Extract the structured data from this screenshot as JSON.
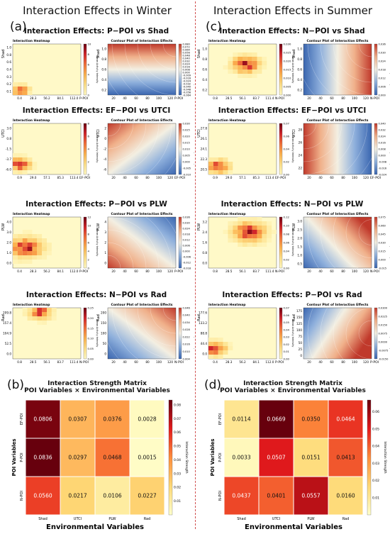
{
  "headers": {
    "winter": "Interaction Effects in Winter",
    "summer": "Interaction Effects in Summer"
  },
  "letters": {
    "a": "(a)",
    "b": "(b)",
    "c": "(c)",
    "d": "(d)"
  },
  "sub": {
    "heat": "Interaction Heatmap",
    "contour": "Contour Plot of Interaction Effects",
    "heat_cb": "Mean Activity Intensity",
    "contour_cb": "Predicted Activity Intensity"
  },
  "colors": {
    "heat_low": "#fff7bc",
    "heat_high": "#67000d",
    "contour_low": "#3b6fb6",
    "contour_mid": "#f7f4e6",
    "contour_high": "#c0392b"
  },
  "chart_data": [
    {
      "type": "heatmap",
      "panel": "a",
      "title": "Interaction Effects: P−POI vs Shad",
      "xlabel": "P-POI",
      "ylabel": "Shad",
      "xticks": [
        "0.4",
        "28.3",
        "56.2",
        "84.1",
        "112.0"
      ],
      "yticks": [
        "0.1",
        "0.2",
        "0.3",
        "0.4",
        "0.6",
        "0.8",
        "1.0"
      ],
      "cbar_ticks": [
        "0",
        "2",
        "4",
        "6",
        "8",
        "10"
      ],
      "contour": {
        "xticks": [
          "20",
          "40",
          "60",
          "80",
          "100",
          "120"
        ],
        "yticks": [
          "0.2",
          "0.4",
          "0.6",
          "0.8",
          "1.0"
        ],
        "cbar_ticks": [
          "-0.064",
          "-0.056",
          "-0.048",
          "-0.040",
          "-0.032",
          "-0.024",
          "-0.016",
          "-0.009",
          "0.000",
          "0.008",
          "0.016",
          "0.024",
          "0.032",
          "0.040",
          "0.048",
          "0.056",
          "0.064",
          "0.072",
          "0.080"
        ]
      }
    },
    {
      "type": "heatmap",
      "panel": "a",
      "title": "Interaction Effects: EF−POI vs UTCI",
      "xlabel": "EF-POI",
      "ylabel": "UTCI",
      "xticks": [
        "0.9",
        "29.0",
        "57.1",
        "85.3",
        "113.4"
      ],
      "yticks": [
        "-6.0",
        "-3.7",
        "-1.5",
        "0.8",
        "3.0"
      ],
      "cbar_ticks": [
        "0",
        "2",
        "4",
        "6",
        "8"
      ],
      "contour": {
        "xticks": [
          "20",
          "40",
          "60",
          "80",
          "100",
          "120"
        ],
        "yticks": [
          "-6",
          "-4",
          "-2",
          "0",
          "2"
        ],
        "cbar_ticks": [
          "-0.010",
          "-0.005",
          "0.000",
          "0.005",
          "0.010",
          "0.015",
          "0.020",
          "0.025",
          "0.030"
        ]
      }
    },
    {
      "type": "heatmap",
      "panel": "a",
      "title": "Interaction Effects: P−POI vs PLW",
      "xlabel": "P-POI",
      "ylabel": "PLW",
      "xticks": [
        "0.4",
        "28.3",
        "56.2",
        "84.1",
        "112.0"
      ],
      "yticks": [
        "0.0",
        "1.0",
        "2.0",
        "3.0",
        "4.0"
      ],
      "cbar_ticks": [
        "0",
        "2",
        "4",
        "6",
        "8",
        "10",
        "12"
      ],
      "contour": {
        "xticks": [
          "20",
          "40",
          "60",
          "80",
          "100",
          "120"
        ],
        "yticks": [
          "0",
          "1",
          "2",
          "3",
          "4"
        ],
        "cbar_ticks": [
          "-0.018",
          "-0.012",
          "-0.006",
          "0.000",
          "0.006",
          "0.012",
          "0.018",
          "0.024",
          "0.030",
          "0.036"
        ]
      }
    },
    {
      "type": "heatmap",
      "panel": "a",
      "title": "Interaction Effects: N−POI vs Rad",
      "xlabel": "N-POI",
      "ylabel": "Rad",
      "xticks": [
        "0.8",
        "28.5",
        "56.1",
        "83.7",
        "111.4"
      ],
      "yticks": [
        "0.0",
        "52.5",
        "104.9",
        "157.4",
        "209.8"
      ],
      "cbar_ticks": [
        "0.00",
        "0.05",
        "0.10",
        "0.15",
        "0.20",
        "0.25"
      ],
      "contour": {
        "xticks": [
          "20",
          "40",
          "60",
          "80",
          "100",
          "120"
        ],
        "yticks": [
          "0",
          "50",
          "100",
          "150",
          "200"
        ],
        "cbar_ticks": [
          "0.004",
          "0.010",
          "0.016",
          "0.022",
          "0.028",
          "0.034",
          "0.040",
          "0.046"
        ]
      }
    },
    {
      "type": "heatmap",
      "panel": "c",
      "title": "Interaction Effects: N−POI vs Shad",
      "xlabel": "N-POI",
      "ylabel": "Shad",
      "xticks": [
        "0.8",
        "28.5",
        "56.1",
        "83.7",
        "111.4"
      ],
      "yticks": [
        "0.2",
        "0.4",
        "0.6",
        "0.8",
        "1.0"
      ],
      "cbar_ticks": [
        "0.000",
        "0.005",
        "0.010",
        "0.015",
        "0.020",
        "0.025",
        "0.030"
      ],
      "contour": {
        "xticks": [
          "20",
          "40",
          "60",
          "80",
          "100",
          "120"
        ],
        "yticks": [
          "0.2",
          "0.4",
          "0.6",
          "0.8",
          "1.0"
        ],
        "cbar_ticks": [
          "0.000",
          "0.006",
          "0.012",
          "0.018",
          "0.024",
          "0.030",
          "0.036"
        ]
      }
    },
    {
      "type": "heatmap",
      "panel": "c",
      "title": "Interaction Effects: EF−POI vs UTCI",
      "xlabel": "EF-POI",
      "ylabel": "UTCI",
      "xticks": [
        "0.9",
        "29.0",
        "57.1",
        "85.3",
        "113.4"
      ],
      "yticks": [
        "20.5",
        "22.3",
        "24.1",
        "26.1",
        "27.8"
      ],
      "cbar_ticks": [
        "0.00",
        "0.02",
        "0.04",
        "0.06",
        "0.07"
      ],
      "contour": {
        "xticks": [
          "20",
          "40",
          "60",
          "80",
          "100",
          "120"
        ],
        "yticks": [
          "22",
          "24",
          "26",
          "28"
        ],
        "cbar_ticks": [
          "-0.024",
          "-0.016",
          "-0.008",
          "0.000",
          "0.008",
          "0.016",
          "0.024",
          "0.032",
          "0.040"
        ]
      }
    },
    {
      "type": "heatmap",
      "panel": "c",
      "title": "Interaction Effects: N−POI vs PLW",
      "xlabel": "N-POI",
      "ylabel": "PLW",
      "xticks": [
        "0.8",
        "28.5",
        "56.1",
        "83.7",
        "111.4"
      ],
      "yticks": [
        "0.0",
        "0.8",
        "1.6",
        "2.4",
        "3.2"
      ],
      "cbar_ticks": [
        "0.00",
        "0.02",
        "0.04",
        "0.06",
        "0.08",
        "0.10",
        "0.12"
      ],
      "contour": {
        "xticks": [
          "20",
          "40",
          "60",
          "80",
          "100",
          "120"
        ],
        "yticks": [
          "0.5",
          "1.0",
          "1.5",
          "2.0",
          "2.5",
          "3.0"
        ],
        "cbar_ticks": [
          "-0.015",
          "0.000",
          "0.015",
          "0.030",
          "0.045",
          "0.060",
          "0.075"
        ]
      }
    },
    {
      "type": "heatmap",
      "panel": "c",
      "title": "Interaction Effects: P−POI vs Rad",
      "xlabel": "P-POI",
      "ylabel": "Rad",
      "xticks": [
        "0.4",
        "28.3",
        "56.2",
        "84.1",
        "112.0"
      ],
      "yticks": [
        "0.0",
        "44.4",
        "88.8",
        "133.2",
        "177.6"
      ],
      "cbar_ticks": [
        "0.00",
        "0.01",
        "0.02",
        "0.03",
        "0.04",
        "0.05",
        "0.06",
        "0.07"
      ],
      "contour": {
        "xticks": [
          "20",
          "40",
          "60",
          "80",
          "100",
          "120"
        ],
        "yticks": [
          "0",
          "25",
          "50",
          "75",
          "100",
          "125",
          "150",
          "175"
        ],
        "cbar_ticks": [
          "-0.0150",
          "-0.0075",
          "0.0000",
          "0.0075",
          "0.0150",
          "0.0225",
          "0.0300"
        ]
      }
    },
    {
      "type": "heatmap",
      "panel": "b",
      "title": "Interaction Strength Matrix",
      "subtitle": "POI Variables × Environmental Variables",
      "xlabel": "Environmental Variables",
      "ylabel": "POI Variables",
      "colorbar_label": "Interaction Strength",
      "columns": [
        "Shad",
        "UTCI",
        "PLW",
        "Rad"
      ],
      "rows": [
        "EF-POI",
        "P-POI",
        "N-POI"
      ],
      "values": [
        [
          0.0806,
          0.0307,
          0.0376,
          0.0028
        ],
        [
          0.0836,
          0.0297,
          0.0468,
          0.0015
        ],
        [
          0.056,
          0.0217,
          0.0106,
          0.0227
        ]
      ],
      "cbar_ticks": [
        "0.01",
        "0.02",
        "0.03",
        "0.04",
        "0.05",
        "0.06",
        "0.07",
        "0.08"
      ],
      "vmin": 0.0,
      "vmax": 0.0836
    },
    {
      "type": "heatmap",
      "panel": "d",
      "title": "Interaction Strength Matrix",
      "subtitle": "POI Variables × Environmental Variables",
      "xlabel": "Environmental Variables",
      "ylabel": "POI Variables",
      "colorbar_label": "Interaction Strength",
      "columns": [
        "Shad",
        "UTCI",
        "PLW",
        "Rad"
      ],
      "rows": [
        "EF-POI",
        "P-POI",
        "N-POI"
      ],
      "values": [
        [
          0.0114,
          0.0669,
          0.035,
          0.0464
        ],
        [
          0.0033,
          0.0507,
          0.0151,
          0.0413
        ],
        [
          0.0437,
          0.0401,
          0.0557,
          0.016
        ]
      ],
      "cbar_ticks": [
        "0.01",
        "0.02",
        "0.03",
        "0.04",
        "0.05",
        "0.06"
      ],
      "vmin": 0.0,
      "vmax": 0.0669
    }
  ]
}
